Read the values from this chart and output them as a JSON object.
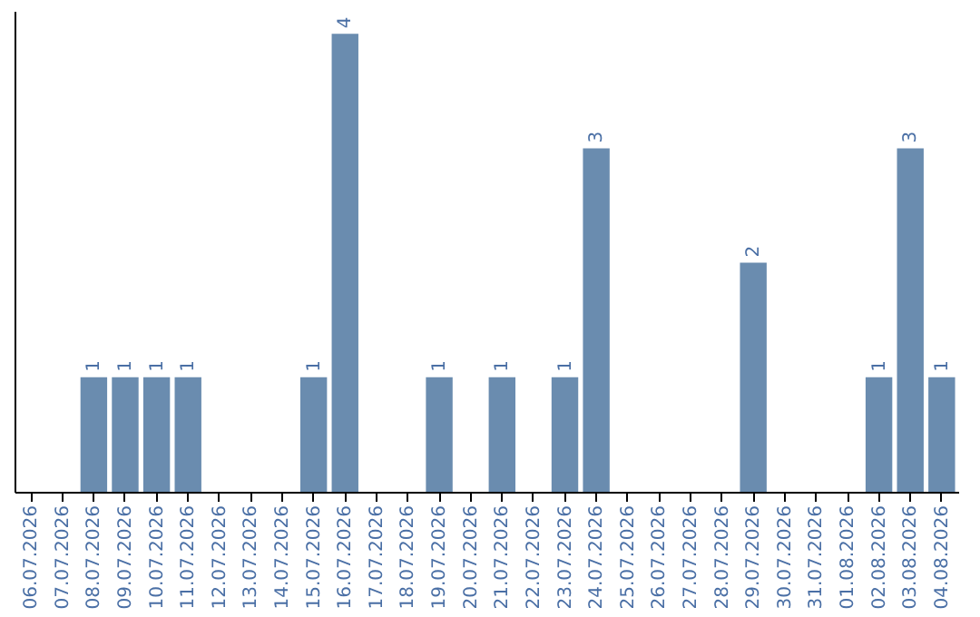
{
  "chart_data": {
    "type": "bar",
    "categories": [
      "06.07.2026",
      "07.07.2026",
      "08.07.2026",
      "09.07.2026",
      "10.07.2026",
      "11.07.2026",
      "12.07.2026",
      "13.07.2026",
      "14.07.2026",
      "15.07.2026",
      "16.07.2026",
      "17.07.2026",
      "18.07.2026",
      "19.07.2026",
      "20.07.2026",
      "21.07.2026",
      "22.07.2026",
      "23.07.2026",
      "24.07.2026",
      "25.07.2026",
      "26.07.2026",
      "27.07.2026",
      "28.07.2026",
      "29.07.2026",
      "30.07.2026",
      "31.07.2026",
      "01.08.2026",
      "02.08.2026",
      "03.08.2026",
      "04.08.2026"
    ],
    "values": [
      0,
      0,
      1,
      1,
      1,
      1,
      0,
      0,
      0,
      1,
      4,
      0,
      0,
      1,
      0,
      1,
      0,
      1,
      3,
      0,
      0,
      0,
      0,
      2,
      0,
      0,
      0,
      1,
      3,
      1
    ],
    "value_labels": [
      null,
      null,
      "1",
      "1",
      "1",
      "1",
      null,
      null,
      null,
      "1",
      "4",
      null,
      null,
      "1",
      null,
      "1",
      null,
      "1",
      "3",
      null,
      null,
      null,
      null,
      "2",
      null,
      null,
      null,
      "1",
      "3",
      "1"
    ],
    "color": "#6a8caf",
    "ylim": [
      0,
      4.2
    ],
    "tick_labels": "x",
    "grid": false
  }
}
